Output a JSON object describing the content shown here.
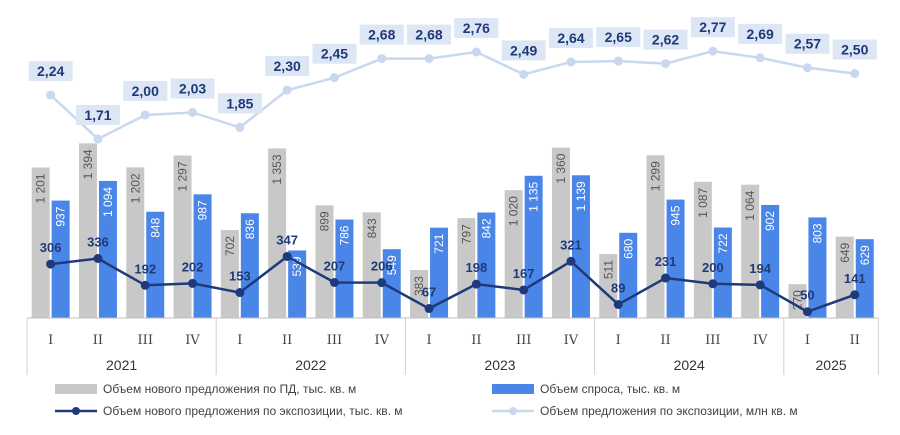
{
  "chart_data": {
    "type": "bar",
    "categories": [
      "I",
      "II",
      "III",
      "IV",
      "I",
      "II",
      "III",
      "IV",
      "I",
      "II",
      "III",
      "IV",
      "I",
      "II",
      "III",
      "IV",
      "I",
      "II"
    ],
    "years": [
      "2021",
      "2022",
      "2023",
      "2024",
      "2025"
    ],
    "series": [
      {
        "name": "Объем нового предложения по ПД, тыс. кв. м",
        "kind": "bar",
        "color": "#c8c8c8",
        "values": [
          1201,
          1394,
          1202,
          1297,
          702,
          1353,
          899,
          843,
          383,
          797,
          1020,
          1360,
          511,
          1299,
          1087,
          1064,
          270,
          649
        ],
        "labels": [
          "1 201",
          "1 394",
          "1 202",
          "1 297",
          "702",
          "1 353",
          "899",
          "843",
          "383",
          "797",
          "1 020",
          "1 360",
          "511",
          "1 299",
          "1 087",
          "1 064",
          "270",
          "649"
        ]
      },
      {
        "name": "Объем спроса, тыс. кв. м",
        "kind": "bar",
        "color": "#4a86e8",
        "values": [
          937,
          1094,
          848,
          987,
          836,
          539,
          786,
          549,
          721,
          842,
          1135,
          1139,
          680,
          945,
          722,
          902,
          803,
          629
        ],
        "labels": [
          "937",
          "1 094",
          "848",
          "987",
          "836",
          "539",
          "786",
          "549",
          "721",
          "842",
          "1 135",
          "1 139",
          "680",
          "945",
          "722",
          "902",
          "803",
          "629"
        ]
      },
      {
        "name": "Объем нового предложения по экспозиции, тыс. кв. м",
        "kind": "line",
        "color": "#1f3a7a",
        "values": [
          306,
          336,
          192,
          202,
          153,
          347,
          207,
          206,
          67,
          198,
          167,
          321,
          89,
          231,
          200,
          194,
          50,
          141
        ],
        "labels": [
          "306",
          "336",
          "192",
          "202",
          "153",
          "347",
          "207",
          "206",
          "67",
          "198",
          "167",
          "321",
          "89",
          "231",
          "200",
          "194",
          "50",
          "141"
        ]
      },
      {
        "name": "Объем предложения по экспозиции, млн кв. м",
        "kind": "line",
        "color": "#c9d8ef",
        "values": [
          2.24,
          1.71,
          2.0,
          2.03,
          1.85,
          2.3,
          2.45,
          2.68,
          2.68,
          2.76,
          2.49,
          2.64,
          2.65,
          2.62,
          2.77,
          2.69,
          2.57,
          2.5
        ],
        "labels": [
          "2,24",
          "1,71",
          "2,00",
          "2,03",
          "1,85",
          "2,30",
          "2,45",
          "2,68",
          "2,68",
          "2,76",
          "2,49",
          "2,64",
          "2,65",
          "2,62",
          "2,77",
          "2,69",
          "2,57",
          "2,50"
        ]
      }
    ],
    "grid": false,
    "legend_position": "bottom"
  }
}
